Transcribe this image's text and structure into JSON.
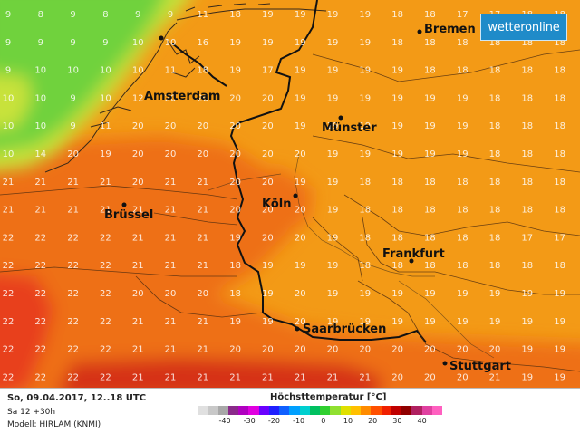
{
  "header": {
    "logo_text": "wetteronline"
  },
  "map": {
    "grid_columns": 18,
    "grid_rows": 14,
    "grid_values": [
      [
        9,
        8,
        9,
        8,
        9,
        9,
        11,
        18,
        19,
        19,
        19,
        19,
        18,
        18,
        17,
        17,
        18,
        18
      ],
      [
        9,
        9,
        9,
        9,
        10,
        10,
        16,
        19,
        19,
        19,
        19,
        19,
        18,
        18,
        18,
        18,
        18,
        18
      ],
      [
        9,
        10,
        10,
        10,
        10,
        11,
        18,
        19,
        17,
        19,
        19,
        19,
        19,
        18,
        18,
        18,
        18,
        18
      ],
      [
        10,
        10,
        9,
        10,
        12,
        20,
        20,
        20,
        20,
        19,
        19,
        19,
        19,
        19,
        19,
        18,
        18,
        18
      ],
      [
        10,
        10,
        9,
        11,
        20,
        20,
        20,
        20,
        20,
        19,
        19,
        19,
        19,
        19,
        19,
        18,
        18,
        18
      ],
      [
        10,
        14,
        20,
        19,
        20,
        20,
        20,
        20,
        20,
        20,
        19,
        19,
        19,
        19,
        19,
        18,
        18,
        18
      ],
      [
        21,
        21,
        21,
        21,
        20,
        21,
        21,
        20,
        20,
        19,
        19,
        18,
        18,
        18,
        18,
        18,
        18,
        18
      ],
      [
        21,
        21,
        21,
        21,
        21,
        21,
        21,
        20,
        20,
        20,
        19,
        18,
        18,
        18,
        18,
        18,
        18,
        18
      ],
      [
        22,
        22,
        22,
        22,
        21,
        21,
        21,
        19,
        20,
        20,
        19,
        18,
        18,
        18,
        18,
        18,
        17,
        17
      ],
      [
        22,
        22,
        22,
        22,
        21,
        21,
        21,
        18,
        19,
        19,
        19,
        18,
        18,
        18,
        18,
        18,
        18,
        18
      ],
      [
        22,
        22,
        22,
        22,
        20,
        20,
        20,
        18,
        19,
        20,
        19,
        19,
        19,
        19,
        19,
        19,
        19,
        19
      ],
      [
        22,
        22,
        22,
        22,
        21,
        21,
        21,
        19,
        19,
        20,
        19,
        19,
        19,
        19,
        19,
        19,
        19,
        19
      ],
      [
        22,
        22,
        22,
        22,
        21,
        21,
        21,
        20,
        20,
        20,
        20,
        20,
        20,
        20,
        20,
        20,
        19,
        19
      ],
      [
        22,
        22,
        22,
        22,
        21,
        21,
        21,
        21,
        21,
        21,
        21,
        21,
        20,
        20,
        20,
        21,
        19,
        19
      ]
    ],
    "cities": [
      {
        "id": "bremen",
        "name": "Bremen"
      },
      {
        "id": "amsterdam",
        "name": "Amsterdam"
      },
      {
        "id": "muenster",
        "name": "Münster"
      },
      {
        "id": "bruessel",
        "name": "Brüssel"
      },
      {
        "id": "koeln",
        "name": "Köln"
      },
      {
        "id": "frankfurt",
        "name": "Frankfurt"
      },
      {
        "id": "saarbruecken",
        "name": "Saarbrücken"
      },
      {
        "id": "stuttgart",
        "name": "Stuttgart"
      }
    ],
    "colors": {
      "green": "#6fd23c",
      "yellow_green": "#c8e23a",
      "orange": "#f39a16",
      "dark_orange": "#ee6f14",
      "red_orange": "#e8401a",
      "red": "#d63018"
    }
  },
  "footer": {
    "date_line": "So, 09.04.2017, 12..18 UTC",
    "step_line": "Sa 12 +30h",
    "model_line": "Modell: HIRLAM (KNMI)"
  },
  "legend": {
    "title": "Höchsttemperatur [°C]",
    "ticks": [
      "-40",
      "-30",
      "-20",
      "-10",
      "0",
      "10",
      "20",
      "30",
      "40"
    ],
    "colors": [
      "#e0e0e0",
      "#c8c8c8",
      "#a8a8a8",
      "#8a2a8a",
      "#b000c0",
      "#e000e0",
      "#6a00ff",
      "#2020ff",
      "#1060ff",
      "#00a0ff",
      "#00d0d0",
      "#00c060",
      "#30d030",
      "#90e030",
      "#e0e000",
      "#ffc000",
      "#ff8c00",
      "#ff5000",
      "#f02000",
      "#c00000",
      "#900000",
      "#b02060",
      "#e040a0",
      "#ff60c0"
    ]
  }
}
